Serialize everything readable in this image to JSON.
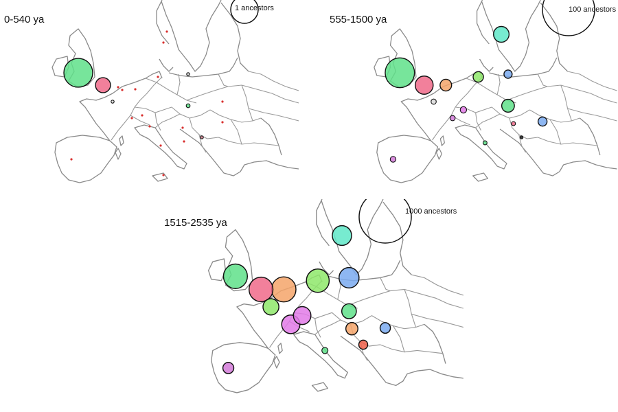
{
  "panels": [
    {
      "era_label": "0-540 ya",
      "scale_label": "1 ancestors",
      "populations": [
        {
          "region": "british-isles",
          "color": "#5fe08a",
          "ancestors": 1.1
        },
        {
          "region": "france-northwest",
          "color": "#f06a8a",
          "ancestors": 0.3
        },
        {
          "region": "france-north",
          "color": "#d9d9d9",
          "ancestors": 0.001
        },
        {
          "region": "alps",
          "color": "#222222",
          "ancestors": 0.001
        },
        {
          "region": "poland",
          "color": "#cfcfcf",
          "ancestors": 0.004
        },
        {
          "region": "hungary",
          "color": "#5fe08a",
          "ancestors": 0.02
        },
        {
          "region": "balkans",
          "color": "#d27a8a",
          "ancestors": 0.007
        }
      ],
      "scatter_dots": [
        "#d9302f"
      ]
    },
    {
      "era_label": "555-1500 ya",
      "scale_label": "100 ancestors",
      "populations": [
        {
          "region": "british-isles",
          "color": "#5fe08a",
          "ancestors": 32
        },
        {
          "region": "scandinavia",
          "color": "#5fe8c8",
          "ancestors": 9
        },
        {
          "region": "france-northwest",
          "color": "#f06a8a",
          "ancestors": 12
        },
        {
          "region": "low-countries",
          "color": "#f4a46a",
          "ancestors": 5
        },
        {
          "region": "germany",
          "color": "#8ee86a",
          "ancestors": 4
        },
        {
          "region": "poland",
          "color": "#7aaaf0",
          "ancestors": 2.5
        },
        {
          "region": "france-north",
          "color": "#d9d9d9",
          "ancestors": 1
        },
        {
          "region": "switzerland",
          "color": "#e27ae8",
          "ancestors": 1.5
        },
        {
          "region": "france-east",
          "color": "#d27ad8",
          "ancestors": 1
        },
        {
          "region": "hungary",
          "color": "#5fe08a",
          "ancestors": 6
        },
        {
          "region": "romania",
          "color": "#7aaaf0",
          "ancestors": 3
        },
        {
          "region": "italy",
          "color": "#5fe08a",
          "ancestors": 0.6
        },
        {
          "region": "balkans-north",
          "color": "#f06a8a",
          "ancestors": 0.6
        },
        {
          "region": "balkans",
          "color": "#222222",
          "ancestors": 0.3
        },
        {
          "region": "iberia",
          "color": "#d27ad8",
          "ancestors": 1.2
        }
      ],
      "scatter_dots": []
    },
    {
      "era_label": "1515-2535 ya",
      "scale_label": "1000 ancestors",
      "populations": [
        {
          "region": "british-isles",
          "color": "#5fe08a",
          "ancestors": 215
        },
        {
          "region": "scandinavia",
          "color": "#5fe8c8",
          "ancestors": 140
        },
        {
          "region": "france-northwest",
          "color": "#f06a8a",
          "ancestors": 215
        },
        {
          "region": "low-countries",
          "color": "#f4a46a",
          "ancestors": 225
        },
        {
          "region": "germany",
          "color": "#8ee86a",
          "ancestors": 195
        },
        {
          "region": "poland",
          "color": "#7aaaf0",
          "ancestors": 150
        },
        {
          "region": "france-north",
          "color": "#8ee86a",
          "ancestors": 95
        },
        {
          "region": "switzerland",
          "color": "#e27ae8",
          "ancestors": 115
        },
        {
          "region": "france-east",
          "color": "#e27ae8",
          "ancestors": 125
        },
        {
          "region": "hungary",
          "color": "#5fe08a",
          "ancestors": 80
        },
        {
          "region": "croatia",
          "color": "#f4a46a",
          "ancestors": 55
        },
        {
          "region": "romania",
          "color": "#7aaaf0",
          "ancestors": 40
        },
        {
          "region": "balkans",
          "color": "#f0604a",
          "ancestors": 30
        },
        {
          "region": "italy",
          "color": "#5fe08a",
          "ancestors": 14
        },
        {
          "region": "iberia",
          "color": "#d27ad8",
          "ancestors": 45
        }
      ],
      "scatter_dots": []
    }
  ]
}
